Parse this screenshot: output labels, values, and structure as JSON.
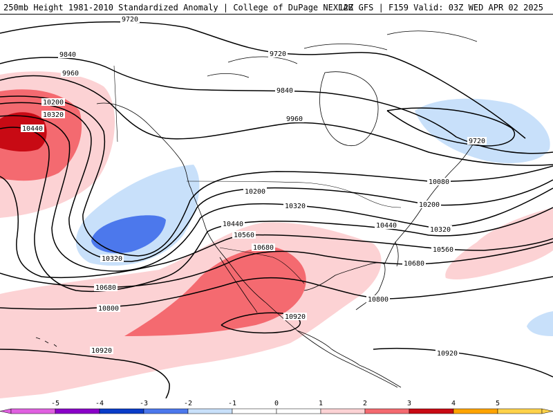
{
  "header": {
    "title": "250mb Height 1981-2010 Standardized Anomaly | College of DuPage NEXLAB",
    "run_info": "12Z GFS | F159 Valid: 03Z WED APR 02 2025"
  },
  "colors": {
    "neg5": "#e060e0",
    "neg4": "#8a00c8",
    "neg3": "#0a3cc8",
    "neg2": "#4c78ec",
    "neg1": "#c8e0fa",
    "zero": "#ffffff",
    "pos1": "#fcd2d4",
    "pos2": "#f46a70",
    "pos3": "#c80a14",
    "pos4": "#ffa400",
    "pos5": "#ffd24a",
    "contour": "#000000"
  },
  "legend": {
    "labels": [
      "-5",
      "-4",
      "-3",
      "-2",
      "-1",
      "0",
      "1",
      "2",
      "3",
      "4",
      "5"
    ]
  },
  "contours": {
    "labels": [
      "9720",
      "9720",
      "9720",
      "9840",
      "9840",
      "9960",
      "9960",
      "10080",
      "10200",
      "10200",
      "10200",
      "10320",
      "10320",
      "10320",
      "10320",
      "10440",
      "10440",
      "10440",
      "10560",
      "10560",
      "10680",
      "10680",
      "10680",
      "10800",
      "10800",
      "10920",
      "10920",
      "10920"
    ]
  }
}
